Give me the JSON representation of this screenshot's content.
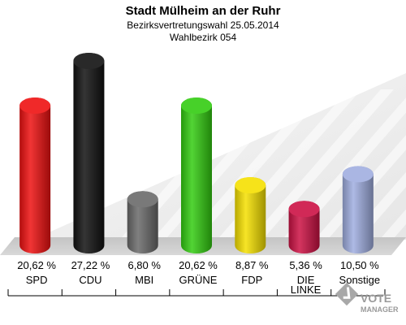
{
  "header": {
    "title": "Stadt Mülheim an der Ruhr",
    "subtitle": "Bezirksvertretungswahl 25.05.2014",
    "district": "Wahlbezirk 054"
  },
  "watermark": {
    "line1": "VOTE",
    "line2": "MANAGER"
  },
  "chart_data": {
    "type": "bar",
    "categories": [
      "SPD",
      "CDU",
      "MBI",
      "GRÜNE",
      "FDP",
      "DIE LINKE",
      "Sonstige"
    ],
    "category_lines": [
      [
        "SPD"
      ],
      [
        "CDU"
      ],
      [
        "MBI"
      ],
      [
        "GRÜNE"
      ],
      [
        "FDP"
      ],
      [
        "DIE",
        "LINKE"
      ],
      [
        "Sonstige"
      ]
    ],
    "values": [
      20.62,
      27.22,
      6.8,
      20.62,
      8.87,
      5.36,
      10.5
    ],
    "value_labels": [
      "20,62 %",
      "27,22 %",
      "6,80 %",
      "20,62 %",
      "8,87 %",
      "5,36 %",
      "10,50 %"
    ],
    "colors": [
      "#ee1111",
      "#111111",
      "#6a6a6a",
      "#33cc11",
      "#f5e000",
      "#cc1144",
      "#a0aee0"
    ],
    "title": "Stadt Mülheim an der Ruhr",
    "xlabel": "",
    "ylabel": "",
    "ylim": [
      0,
      27.22
    ],
    "grid": false,
    "legend": "none"
  }
}
